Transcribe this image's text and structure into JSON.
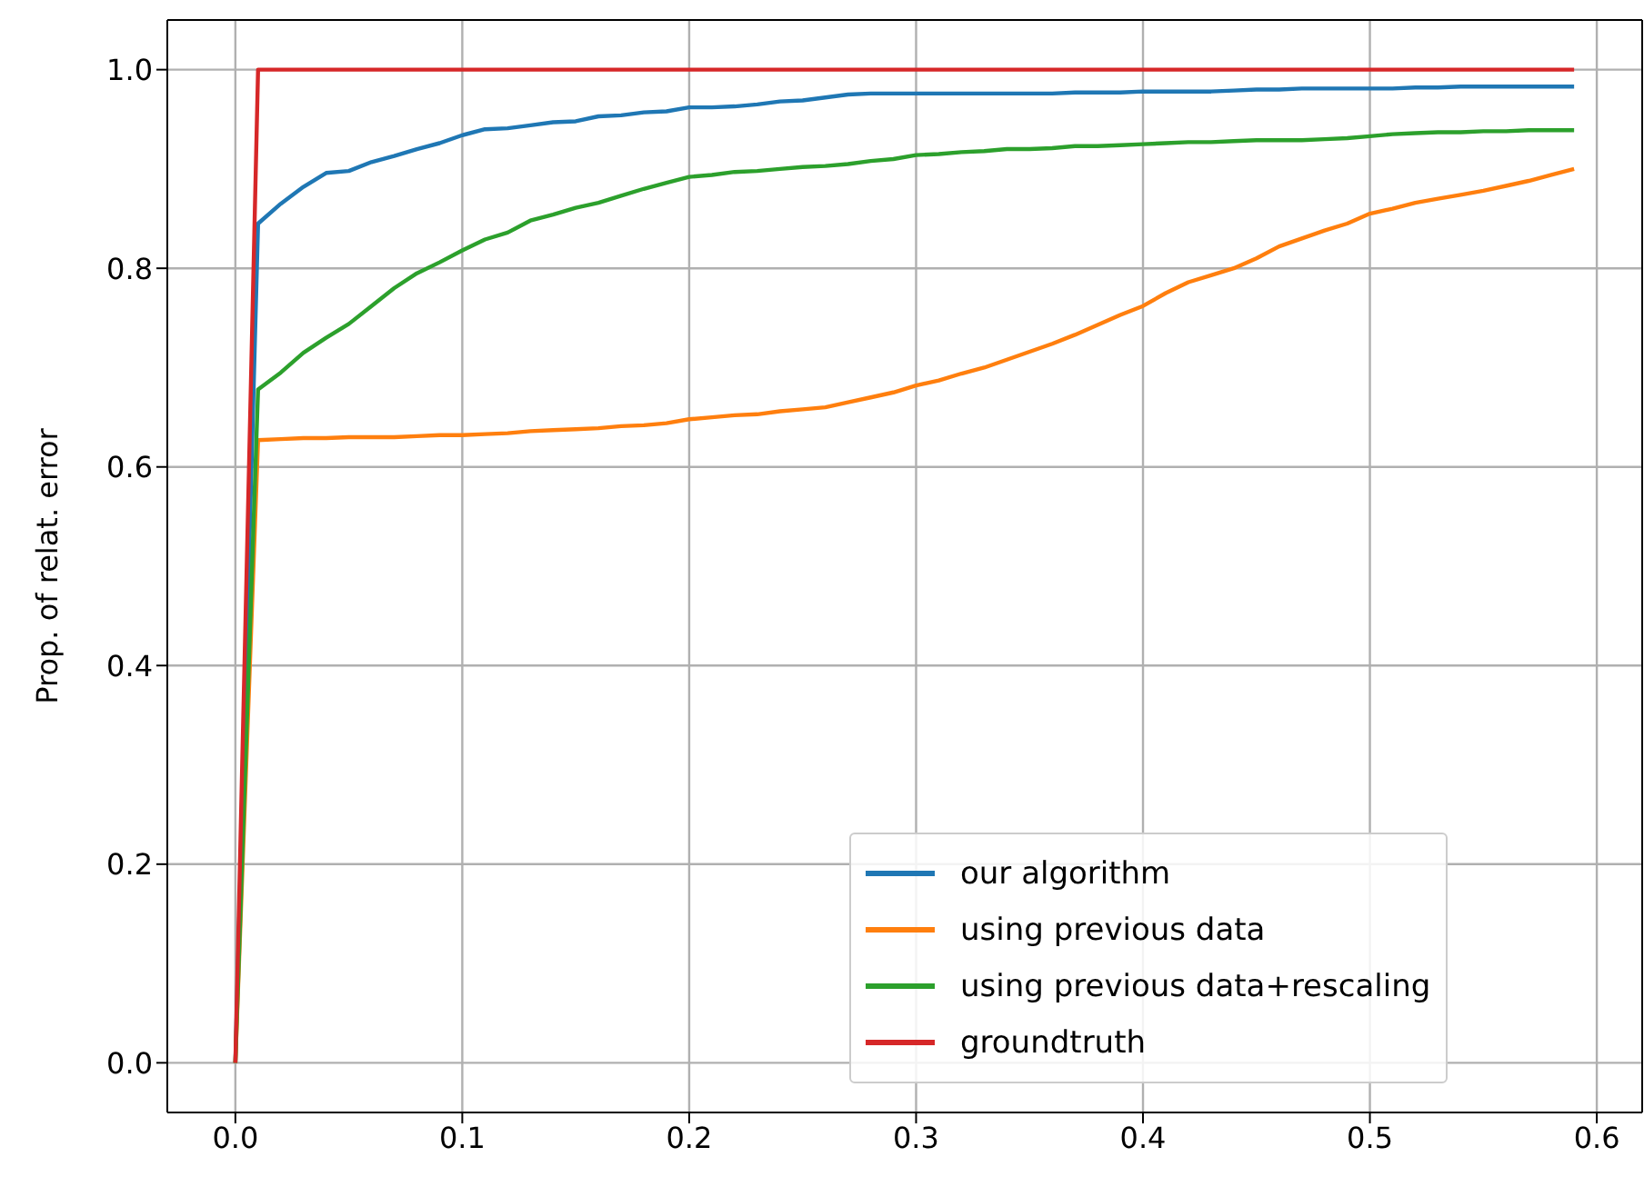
{
  "chart_data": {
    "type": "line",
    "ylabel": "Prop. of  relat. error",
    "x": [
      0,
      0.01,
      0.02,
      0.03,
      0.04,
      0.05,
      0.06,
      0.07,
      0.08,
      0.09,
      0.1,
      0.11,
      0.12,
      0.13,
      0.14,
      0.15,
      0.16,
      0.17,
      0.18,
      0.19,
      0.2,
      0.21,
      0.22,
      0.23,
      0.24,
      0.25,
      0.26,
      0.27,
      0.28,
      0.29,
      0.3,
      0.31,
      0.32,
      0.33,
      0.34,
      0.35,
      0.36,
      0.37,
      0.38,
      0.39,
      0.4,
      0.41,
      0.42,
      0.43,
      0.44,
      0.45,
      0.46,
      0.47,
      0.48,
      0.49,
      0.5,
      0.51,
      0.52,
      0.53,
      0.54,
      0.55,
      0.56,
      0.57,
      0.58,
      0.59
    ],
    "series": [
      {
        "name": "our algorithm",
        "color": "#1f77b4",
        "values": [
          0,
          0.845,
          0.865,
          0.882,
          0.896,
          0.898,
          0.907,
          0.913,
          0.92,
          0.926,
          0.934,
          0.94,
          0.941,
          0.944,
          0.947,
          0.948,
          0.953,
          0.954,
          0.957,
          0.958,
          0.962,
          0.962,
          0.963,
          0.965,
          0.968,
          0.969,
          0.972,
          0.975,
          0.976,
          0.976,
          0.976,
          0.976,
          0.976,
          0.976,
          0.976,
          0.976,
          0.976,
          0.977,
          0.977,
          0.977,
          0.978,
          0.978,
          0.978,
          0.978,
          0.979,
          0.98,
          0.98,
          0.981,
          0.981,
          0.981,
          0.981,
          0.981,
          0.982,
          0.982,
          0.983,
          0.983,
          0.983,
          0.983,
          0.983,
          0.983
        ]
      },
      {
        "name": "using previous data",
        "color": "#ff7f0e",
        "values": [
          0,
          0.627,
          0.628,
          0.629,
          0.629,
          0.63,
          0.63,
          0.63,
          0.631,
          0.632,
          0.632,
          0.633,
          0.634,
          0.636,
          0.637,
          0.638,
          0.639,
          0.641,
          0.642,
          0.644,
          0.648,
          0.65,
          0.652,
          0.653,
          0.656,
          0.658,
          0.66,
          0.665,
          0.67,
          0.675,
          0.682,
          0.687,
          0.694,
          0.7,
          0.708,
          0.716,
          0.724,
          0.733,
          0.743,
          0.753,
          0.762,
          0.775,
          0.786,
          0.793,
          0.8,
          0.81,
          0.822,
          0.83,
          0.838,
          0.845,
          0.855,
          0.86,
          0.866,
          0.87,
          0.874,
          0.878,
          0.883,
          0.888,
          0.894,
          0.9
        ]
      },
      {
        "name": "using previous data+rescaling",
        "color": "#2ca02c",
        "values": [
          0,
          0.678,
          0.695,
          0.715,
          0.73,
          0.744,
          0.762,
          0.78,
          0.795,
          0.806,
          0.818,
          0.829,
          0.836,
          0.848,
          0.854,
          0.861,
          0.866,
          0.873,
          0.88,
          0.886,
          0.892,
          0.894,
          0.897,
          0.898,
          0.9,
          0.902,
          0.903,
          0.905,
          0.908,
          0.91,
          0.914,
          0.915,
          0.917,
          0.918,
          0.92,
          0.92,
          0.921,
          0.923,
          0.923,
          0.924,
          0.925,
          0.926,
          0.927,
          0.927,
          0.928,
          0.929,
          0.929,
          0.929,
          0.93,
          0.931,
          0.933,
          0.935,
          0.936,
          0.937,
          0.937,
          0.938,
          0.938,
          0.939,
          0.939,
          0.939
        ]
      },
      {
        "name": "groundtruth",
        "color": "#d62728",
        "x": [
          0,
          0.01,
          0.59
        ],
        "values": [
          0,
          1,
          1
        ]
      }
    ],
    "xlim": [
      -0.03,
      0.62
    ],
    "xticks": [
      {
        "value": 0,
        "label": "0.0"
      },
      0.1,
      0.2,
      0.3,
      0.4,
      0.5,
      0.6
    ],
    "ylim": [
      -0.05,
      1.05
    ],
    "yticks": [
      {
        "value": 0,
        "label": "0.0"
      },
      0.2,
      0.4,
      0.6,
      0.8,
      {
        "value": 1,
        "label": "1.0"
      }
    ],
    "grid": true,
    "legend": "bottom right",
    "line_style": "solid"
  }
}
